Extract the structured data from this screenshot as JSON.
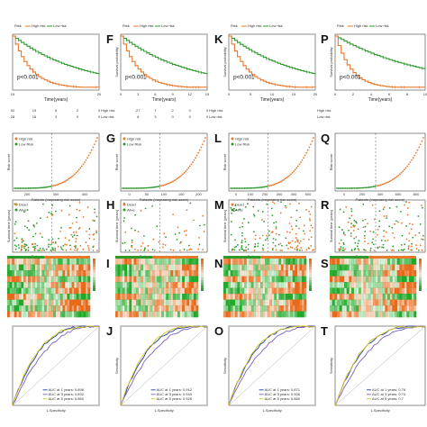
{
  "colors": {
    "high": "#e8782a",
    "low": "#2e9a2e",
    "dead": "#e8782a",
    "alive": "#2e9a2e",
    "heat_high": "#e66a1a",
    "heat_low": "#22a82a",
    "roc1": "#1f3fa8",
    "roc3": "#7d5fc0",
    "roc5": "#d7c21e"
  },
  "columns": [
    {
      "km_label": "",
      "risk_label": "",
      "dot_label": "",
      "heat_label": "",
      "roc_label": "",
      "pvalue": "p<0.001",
      "xlabel": "Time(years)",
      "km_ticks": [
        "15",
        "20"
      ],
      "risk_row_high": [
        "92",
        "19",
        "5",
        "2",
        "0"
      ],
      "risk_row_low": [
        "28",
        "16",
        "3",
        "0",
        "0"
      ],
      "legend_risk": {
        "title": "Risk",
        "high": "High risk",
        "low": "Low risk"
      },
      "rs_legend": {
        "high": "High risk",
        "low": "Low Risk"
      },
      "rs_xlabel": "Patients (increasing risk socre)",
      "rs_ticks": [
        "200",
        "300",
        "400"
      ],
      "dot_legend": {
        "dead": "Dead",
        "alive": "Alive"
      },
      "dot_xlabel": "Patients (increasing risk socre)",
      "dot_ticks": [
        "200",
        "300",
        "400"
      ],
      "roc_xlabel": "1-Specificity",
      "roc_ylabel": "",
      "auc": [
        "AUC at 1 years: 0.898",
        "AUC at 3 years: 0.832",
        "AUC at 5 years: 0.860"
      ]
    },
    {
      "km_label": "F",
      "risk_label": "G",
      "dot_label": "H",
      "heat_label": "I",
      "roc_label": "J",
      "pvalue": "p<0.001",
      "xlabel": "Time(years)",
      "km_ticks": [
        "0",
        "3",
        "6",
        "9",
        "12",
        "15"
      ],
      "risk_row_high": [
        "",
        "27",
        "7",
        "2",
        "0",
        "0"
      ],
      "risk_row_low": [
        "",
        "6",
        "3",
        "0",
        "0",
        "0"
      ],
      "legend_risk": {
        "title": "Risk",
        "high": "High risk",
        "low": "Low risk"
      },
      "rs_legend": {
        "high": "High risk",
        "low": "Low Risk"
      },
      "rs_xlabel": "Patients (increasing risk socre)",
      "rs_ticks": [
        "0",
        "50",
        "100",
        "150",
        "200"
      ],
      "dot_legend": {
        "dead": "Dead",
        "alive": "Alive"
      },
      "dot_xlabel": "Patients (increasing risk socre)",
      "dot_ticks": [
        "0",
        "50",
        "100",
        "150",
        "200"
      ],
      "roc_xlabel": "1-Specificity",
      "roc_ylabel": "Sensitivity",
      "auc": [
        "AUC at 1 years: 0.912",
        "AUC at 3 years: 0.949",
        "AUC at 5 years: 0.926"
      ]
    },
    {
      "km_label": "K",
      "risk_label": "L",
      "dot_label": "M",
      "heat_label": "N",
      "roc_label": "O",
      "pvalue": "p<0.001",
      "xlabel": "Time(years)",
      "km_ticks": [
        "0",
        "5",
        "10",
        "15",
        "20"
      ],
      "risk_row_high": [
        "",
        "",
        "",
        "",
        ""
      ],
      "risk_row_low": [
        "",
        "",
        "",
        "",
        ""
      ],
      "legend_risk": {
        "title": "Risk",
        "high": "High risk",
        "low": "Low risk"
      },
      "rs_legend": {
        "high": "High risk",
        "low": "Low Risk"
      },
      "rs_xlabel": "Patients (increasing risk socre)",
      "rs_ticks": [
        "0",
        "100",
        "200",
        "300",
        "400",
        "500"
      ],
      "dot_legend": {
        "dead": "Dead",
        "alive": "Alive"
      },
      "dot_xlabel": "Patients (increasing risk socre)",
      "dot_ticks": [
        "0",
        "100",
        "200",
        "300",
        "400",
        "500"
      ],
      "roc_xlabel": "1-Specificity",
      "roc_ylabel": "Sensitivity",
      "auc": [
        "AUC at 1 years: 0.871",
        "AUC at 3 years: 0.906",
        "AUC at 5 years: 0.880"
      ]
    },
    {
      "km_label": "P",
      "risk_label": "Q",
      "dot_label": "R",
      "heat_label": "S",
      "roc_label": "T",
      "pvalue": "p<0.001",
      "xlabel": "Time(years)",
      "km_ticks": [
        "0",
        "2",
        "4",
        "6",
        "8",
        "10"
      ],
      "risk_row_high": [
        "",
        "",
        "",
        "",
        "",
        ""
      ],
      "risk_row_low": [
        "",
        "",
        "",
        "",
        "",
        ""
      ],
      "legend_risk": {
        "title": "Risk",
        "high": "High risk",
        "low": "Low risk"
      },
      "rs_legend": {
        "high": "",
        "low": ""
      },
      "rs_xlabel": "Patients (increasing risk score)",
      "rs_ticks": [
        "0",
        "200",
        "400",
        "600",
        "800"
      ],
      "dot_legend": {
        "dead": "",
        "alive": ""
      },
      "dot_xlabel": "Patients (increasing risk score)",
      "dot_ticks": [
        "0",
        "200",
        "400",
        "600",
        "800"
      ],
      "roc_xlabel": "1-Specificity",
      "roc_ylabel": "Sensitivity",
      "auc": [
        "AUC at 1 years: 0.76",
        "AUC at 3 years: 0.74",
        "AUC at 5 years: 0.7"
      ]
    }
  ],
  "ylabels": {
    "km": "Survival probability",
    "rs": "Risk score",
    "dot": "Survival time (years)"
  }
}
